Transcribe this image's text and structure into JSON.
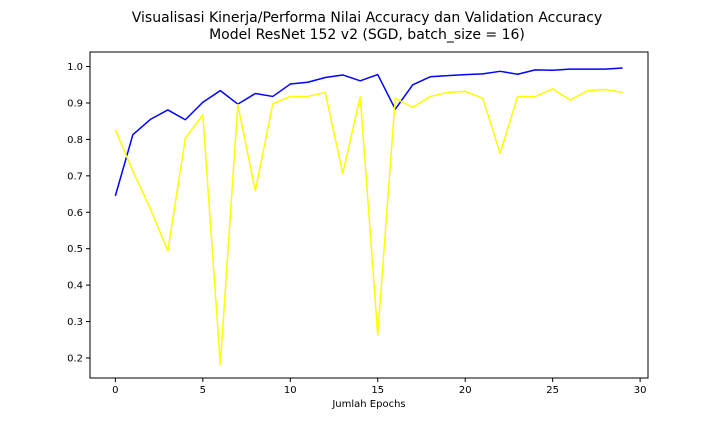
{
  "chart_data": {
    "type": "line",
    "title_line1": "Visualisasi Kinerja/Performa Nilai Accuracy dan Validation Accuracy",
    "title_line2": "Model ResNet 152 v2 (SGD, batch_size = 16)",
    "xlabel": "Jumlah Epochs",
    "ylabel": "",
    "xlim": [
      -1.45,
      30.45
    ],
    "ylim": [
      0.145,
      1.04
    ],
    "xticks": [
      0,
      5,
      10,
      15,
      20,
      25,
      30
    ],
    "yticks": [
      0.2,
      0.3,
      0.4,
      0.5,
      0.6,
      0.7,
      0.8,
      0.9,
      1.0
    ],
    "grid": false,
    "legend": "none",
    "x": [
      0,
      1,
      2,
      3,
      4,
      5,
      6,
      7,
      8,
      9,
      10,
      11,
      12,
      13,
      14,
      15,
      16,
      17,
      18,
      19,
      20,
      21,
      22,
      23,
      24,
      25,
      26,
      27,
      28,
      29
    ],
    "series": [
      {
        "color": "#0000ff",
        "values": [
          0.645,
          0.813,
          0.855,
          0.881,
          0.854,
          0.902,
          0.934,
          0.897,
          0.926,
          0.918,
          0.952,
          0.957,
          0.97,
          0.977,
          0.961,
          0.978,
          0.883,
          0.95,
          0.972,
          0.975,
          0.978,
          0.98,
          0.987,
          0.979,
          0.991,
          0.99,
          0.993,
          0.993,
          0.993,
          0.996
        ]
      },
      {
        "color": "#ffff00",
        "values": [
          0.827,
          0.713,
          0.61,
          0.494,
          0.803,
          0.868,
          0.182,
          0.896,
          0.659,
          0.898,
          0.918,
          0.918,
          0.929,
          0.706,
          0.918,
          0.263,
          0.913,
          0.888,
          0.918,
          0.929,
          0.932,
          0.913,
          0.762,
          0.918,
          0.918,
          0.939,
          0.908,
          0.934,
          0.937,
          0.929
        ]
      }
    ]
  }
}
